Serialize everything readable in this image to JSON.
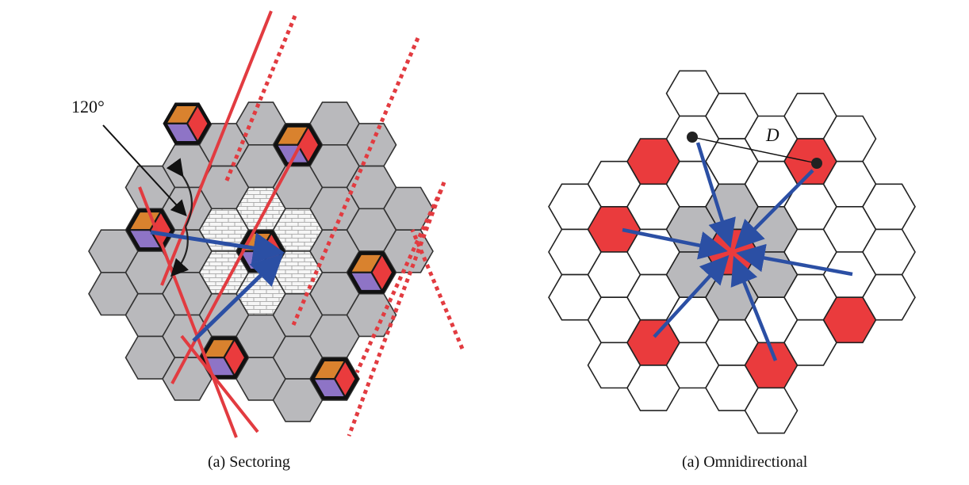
{
  "left_figure": {
    "caption": "(a) Sectoring",
    "angle_label": "120°"
  },
  "right_figure": {
    "caption": "(a) Omnidirectional",
    "distance_label": "D"
  },
  "colors": {
    "cell_gray": "#b9b9bc",
    "cell_outline": "#333333",
    "interferer_red": "#ea3b3d",
    "sector_orange": "#d9822e",
    "sector_purple": "#8e74c6",
    "arrow_blue": "#2b4fa4",
    "sector_line_red": "#e23b40",
    "cell_white": "#ffffff",
    "brick_white": "#f6f6f6"
  }
}
